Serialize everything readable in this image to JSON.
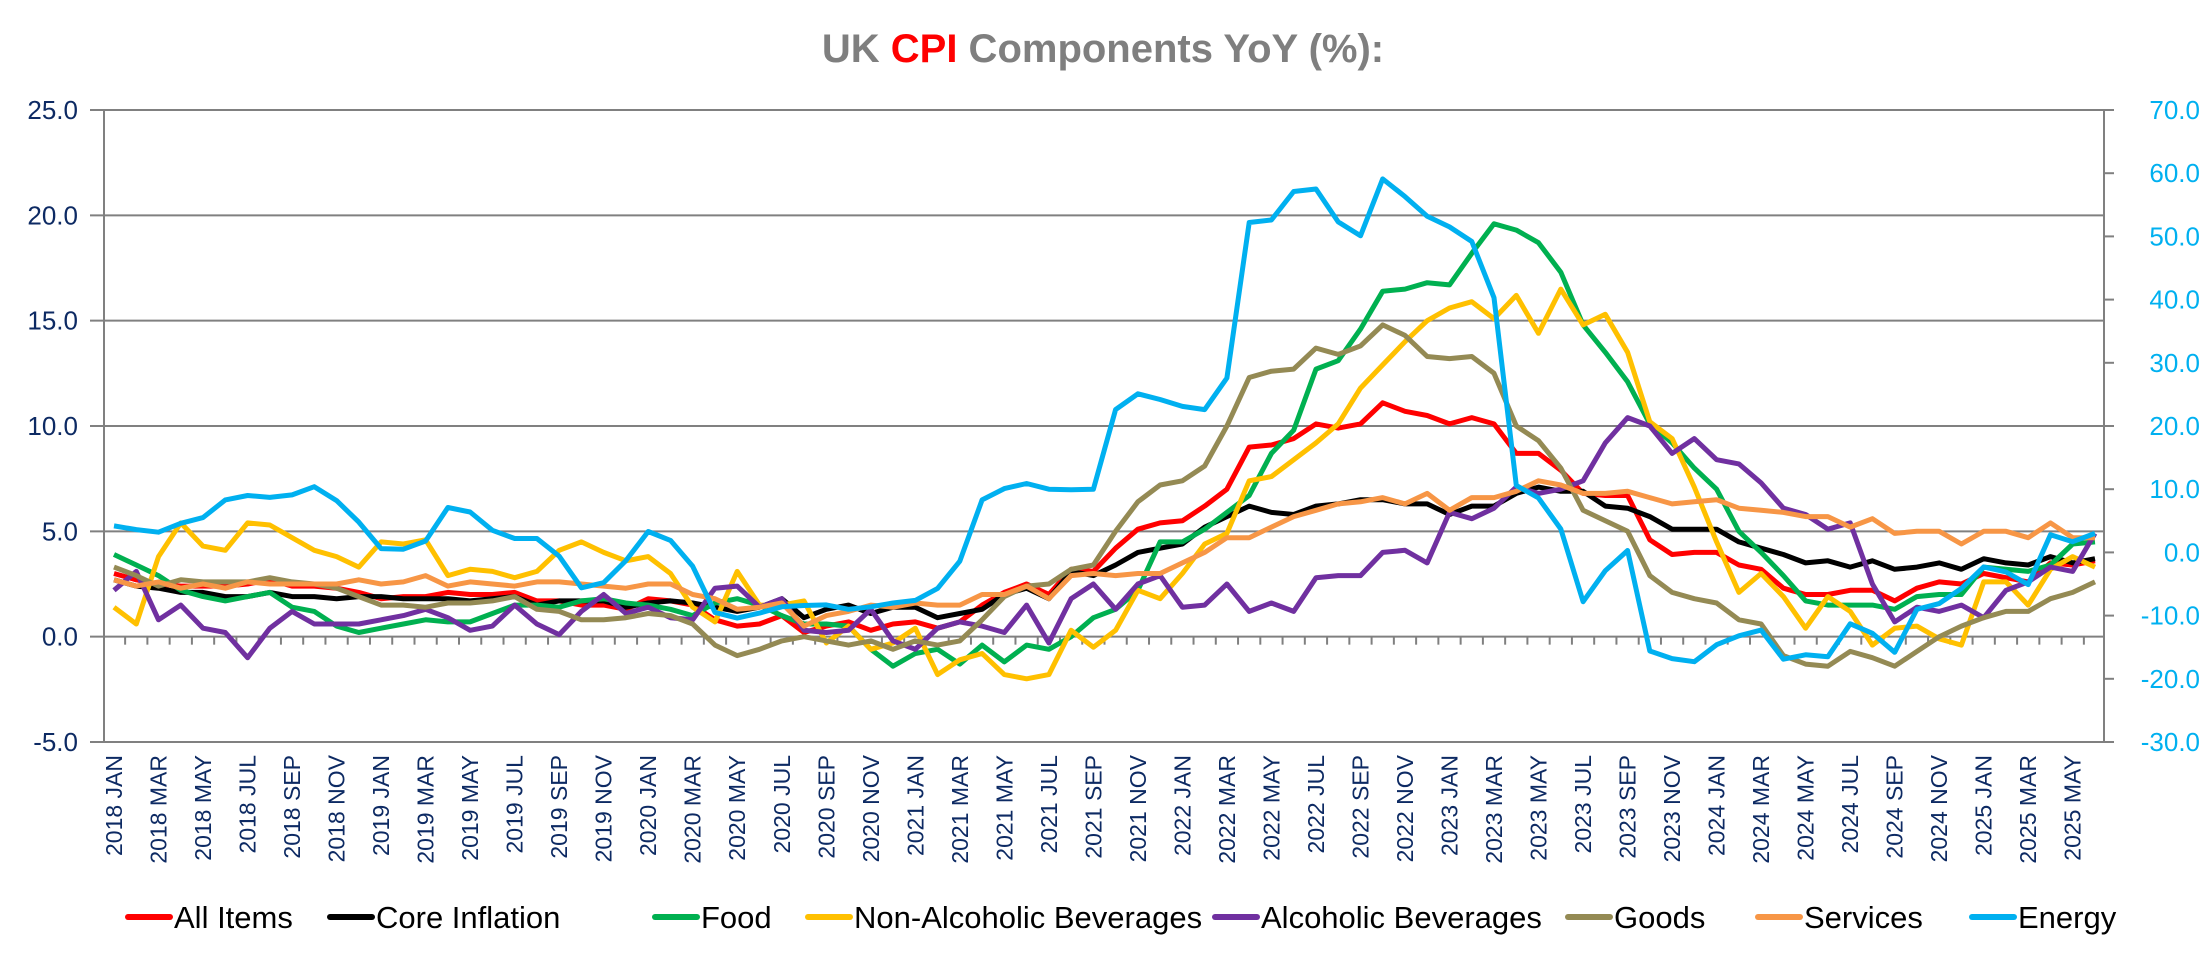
{
  "chart_data": {
    "type": "line",
    "title_parts": [
      {
        "text": "UK ",
        "accent": false
      },
      {
        "text": "CPI",
        "accent": true
      },
      {
        "text": " Components YoY (%):",
        "accent": false
      }
    ],
    "title": "UK CPI Components YoY (%):",
    "title_color": "#7f7f7f",
    "title_accent_color": "#ff0000",
    "xlabel": "",
    "ylabel": "",
    "ylim": [
      -5,
      25
    ],
    "yticks": [
      "-5.0",
      "0.0",
      "5.0",
      "10.0",
      "15.0",
      "20.0",
      "25.0"
    ],
    "y2lim": [
      -30,
      70
    ],
    "y2ticks": [
      "-30.0",
      "-20.0",
      "-10.0",
      "0.0",
      "10.0",
      "20.0",
      "30.0",
      "40.0",
      "50.0",
      "60.0",
      "70.0"
    ],
    "grid": true,
    "legend_position": "bottom",
    "x_label_step": 2,
    "x": [
      "2018 JAN",
      "2018 FEB",
      "2018 MAR",
      "2018 APR",
      "2018 MAY",
      "2018 JUN",
      "2018 JUL",
      "2018 AUG",
      "2018 SEP",
      "2018 OCT",
      "2018 NOV",
      "2018 DEC",
      "2019 JAN",
      "2019 FEB",
      "2019 MAR",
      "2019 APR",
      "2019 MAY",
      "2019 JUN",
      "2019 JUL",
      "2019 AUG",
      "2019 SEP",
      "2019 OCT",
      "2019 NOV",
      "2019 DEC",
      "2020 JAN",
      "2020 FEB",
      "2020 MAR",
      "2020 APR",
      "2020 MAY",
      "2020 JUN",
      "2020 JUL",
      "2020 AUG",
      "2020 SEP",
      "2020 OCT",
      "2020 NOV",
      "2020 DEC",
      "2021 JAN",
      "2021 FEB",
      "2021 MAR",
      "2021 APR",
      "2021 MAY",
      "2021 JUN",
      "2021 JUL",
      "2021 AUG",
      "2021 SEP",
      "2021 OCT",
      "2021 NOV",
      "2021 DEC",
      "2022 JAN",
      "2022 FEB",
      "2022 MAR",
      "2022 APR",
      "2022 MAY",
      "2022 JUN",
      "2022 JUL",
      "2022 AUG",
      "2022 SEP",
      "2022 OCT",
      "2022 NOV",
      "2022 DEC",
      "2023 JAN",
      "2023 FEB",
      "2023 MAR",
      "2023 APR",
      "2023 MAY",
      "2023 JUN",
      "2023 JUL",
      "2023 AUG",
      "2023 SEP",
      "2023 OCT",
      "2023 NOV",
      "2023 DEC",
      "2024 JAN",
      "2024 FEB",
      "2024 MAR",
      "2024 APR",
      "2024 MAY",
      "2024 JUN",
      "2024 JUL",
      "2024 AUG",
      "2024 SEP",
      "2024 OCT",
      "2024 NOV",
      "2024 DEC",
      "2025 JAN",
      "2025 FEB",
      "2025 MAR",
      "2025 APR",
      "2025 MAY",
      "2025 JUN"
    ],
    "series": [
      {
        "name": "All Items",
        "color": "#ff0000",
        "axis": "left",
        "values": [
          3.0,
          2.7,
          2.5,
          2.4,
          2.4,
          2.4,
          2.5,
          2.7,
          2.4,
          2.4,
          2.3,
          2.1,
          1.8,
          1.9,
          1.9,
          2.1,
          2.0,
          2.0,
          2.1,
          1.7,
          1.7,
          1.5,
          1.5,
          1.3,
          1.8,
          1.7,
          1.5,
          0.8,
          0.5,
          0.6,
          1.0,
          0.2,
          0.5,
          0.7,
          0.3,
          0.6,
          0.7,
          0.4,
          0.7,
          1.5,
          2.1,
          2.5,
          2.0,
          3.2,
          3.1,
          4.2,
          5.1,
          5.4,
          5.5,
          6.2,
          7.0,
          9.0,
          9.1,
          9.4,
          10.1,
          9.9,
          10.1,
          11.1,
          10.7,
          10.5,
          10.1,
          10.4,
          10.1,
          8.7,
          8.7,
          7.9,
          6.8,
          6.7,
          6.7,
          4.6,
          3.9,
          4.0,
          4.0,
          3.4,
          3.2,
          2.3,
          2.0,
          2.0,
          2.2,
          2.2,
          1.7,
          2.3,
          2.6,
          2.5,
          3.0,
          2.8,
          2.6,
          3.5,
          3.4,
          3.6
        ]
      },
      {
        "name": "Core Inflation",
        "color": "#000000",
        "axis": "left",
        "values": [
          2.7,
          2.4,
          2.3,
          2.1,
          2.1,
          1.9,
          1.9,
          2.1,
          1.9,
          1.9,
          1.8,
          1.9,
          1.9,
          1.8,
          1.8,
          1.8,
          1.7,
          1.8,
          1.9,
          1.5,
          1.7,
          1.7,
          1.7,
          1.4,
          1.6,
          1.7,
          1.6,
          1.4,
          1.2,
          1.4,
          1.8,
          0.9,
          1.3,
          1.5,
          1.1,
          1.4,
          1.4,
          0.9,
          1.1,
          1.3,
          2.0,
          2.3,
          1.8,
          3.1,
          2.9,
          3.4,
          4.0,
          4.2,
          4.4,
          5.2,
          5.7,
          6.2,
          5.9,
          5.8,
          6.2,
          6.3,
          6.5,
          6.5,
          6.3,
          6.3,
          5.8,
          6.2,
          6.2,
          6.8,
          7.1,
          6.9,
          6.9,
          6.2,
          6.1,
          5.7,
          5.1,
          5.1,
          5.1,
          4.5,
          4.2,
          3.9,
          3.5,
          3.6,
          3.3,
          3.6,
          3.2,
          3.3,
          3.5,
          3.2,
          3.7,
          3.5,
          3.4,
          3.8,
          3.5,
          3.7
        ]
      },
      {
        "name": "Food",
        "color": "#00b050",
        "axis": "left",
        "values": [
          3.9,
          3.4,
          2.9,
          2.2,
          1.9,
          1.7,
          1.9,
          2.1,
          1.4,
          1.2,
          0.5,
          0.2,
          0.4,
          0.6,
          0.8,
          0.7,
          0.7,
          1.1,
          1.5,
          1.5,
          1.4,
          1.7,
          1.8,
          1.6,
          1.5,
          1.3,
          1.0,
          1.6,
          1.8,
          1.5,
          1.0,
          0.6,
          0.6,
          0.5,
          -0.6,
          -1.4,
          -0.8,
          -0.6,
          -1.3,
          -0.4,
          -1.2,
          -0.4,
          -0.6,
          0.0,
          0.9,
          1.3,
          2.2,
          4.5,
          4.5,
          5.1,
          5.9,
          6.7,
          8.7,
          9.8,
          12.7,
          13.1,
          14.6,
          16.4,
          16.5,
          16.8,
          16.7,
          18.2,
          19.6,
          19.3,
          18.7,
          17.3,
          14.8,
          13.5,
          12.1,
          10.1,
          9.2,
          8.0,
          7.0,
          5.0,
          4.0,
          2.9,
          1.7,
          1.5,
          1.5,
          1.5,
          1.3,
          1.9,
          2.0,
          2.0,
          3.3,
          3.2,
          3.1,
          3.4,
          4.4,
          4.5
        ]
      },
      {
        "name": "Non-Alcoholic Beverages",
        "color": "#ffc000",
        "axis": "left",
        "values": [
          1.4,
          0.6,
          3.8,
          5.4,
          4.3,
          4.1,
          5.4,
          5.3,
          4.7,
          4.1,
          3.8,
          3.3,
          4.5,
          4.4,
          4.6,
          2.9,
          3.2,
          3.1,
          2.8,
          3.1,
          4.1,
          4.5,
          4.0,
          3.6,
          3.8,
          3.0,
          1.4,
          0.7,
          3.1,
          1.5,
          1.5,
          1.7,
          -0.3,
          0.5,
          -0.6,
          -0.3,
          0.4,
          -1.8,
          -1.1,
          -0.8,
          -1.8,
          -2.0,
          -1.8,
          0.3,
          -0.5,
          0.3,
          2.2,
          1.8,
          3.0,
          4.4,
          4.9,
          7.4,
          7.6,
          8.4,
          9.2,
          10.1,
          11.8,
          12.9,
          14.0,
          15.0,
          15.6,
          15.9,
          15.1,
          16.2,
          14.4,
          16.5,
          14.8,
          15.3,
          13.5,
          10.2,
          9.4,
          7.1,
          4.5,
          2.1,
          3.0,
          1.9,
          0.4,
          1.9,
          1.2,
          -0.4,
          0.4,
          0.5,
          -0.1,
          -0.4,
          2.6,
          2.6,
          1.5,
          3.2,
          3.8,
          3.3
        ]
      },
      {
        "name": "Alcoholic Beverages",
        "color": "#7030a0",
        "axis": "left",
        "values": [
          2.2,
          3.1,
          0.8,
          1.5,
          0.4,
          0.2,
          -1.0,
          0.4,
          1.2,
          0.6,
          0.6,
          0.6,
          0.8,
          1.0,
          1.3,
          0.9,
          0.3,
          0.5,
          1.5,
          0.6,
          0.1,
          1.2,
          2.0,
          1.1,
          1.4,
          0.9,
          0.8,
          2.3,
          2.4,
          1.4,
          1.8,
          0.3,
          0.2,
          0.3,
          1.3,
          -0.2,
          -0.6,
          0.4,
          0.7,
          0.5,
          0.2,
          1.5,
          -0.3,
          1.8,
          2.5,
          1.3,
          2.5,
          2.9,
          1.4,
          1.5,
          2.5,
          1.2,
          1.6,
          1.2,
          2.8,
          2.9,
          2.9,
          4.0,
          4.1,
          3.5,
          5.9,
          5.6,
          6.1,
          7.1,
          6.8,
          7.0,
          7.4,
          9.2,
          10.4,
          10.0,
          8.7,
          9.4,
          8.4,
          8.2,
          7.3,
          6.1,
          5.8,
          5.1,
          5.4,
          2.5,
          0.7,
          1.4,
          1.2,
          1.5,
          0.9,
          2.2,
          2.6,
          3.3,
          3.1,
          4.9
        ]
      },
      {
        "name": "Goods",
        "color": "#948a54",
        "axis": "left",
        "values": [
          3.3,
          2.9,
          2.4,
          2.7,
          2.6,
          2.6,
          2.6,
          2.8,
          2.6,
          2.5,
          2.3,
          1.9,
          1.5,
          1.5,
          1.4,
          1.6,
          1.6,
          1.7,
          1.9,
          1.3,
          1.2,
          0.8,
          0.8,
          0.9,
          1.1,
          1.0,
          0.6,
          -0.4,
          -0.9,
          -0.6,
          -0.2,
          0.0,
          -0.2,
          -0.4,
          -0.2,
          -0.6,
          -0.2,
          -0.4,
          -0.2,
          0.8,
          1.9,
          2.4,
          2.5,
          3.2,
          3.4,
          5.0,
          6.4,
          7.2,
          7.4,
          8.1,
          10.0,
          12.3,
          12.6,
          12.7,
          13.7,
          13.4,
          13.8,
          14.8,
          14.3,
          13.3,
          13.2,
          13.3,
          12.5,
          10.0,
          9.3,
          8.0,
          6.0,
          5.5,
          5.0,
          2.9,
          2.1,
          1.8,
          1.6,
          0.8,
          0.6,
          -0.9,
          -1.3,
          -1.4,
          -0.7,
          -1.0,
          -1.4,
          -0.7,
          0.0,
          0.5,
          0.9,
          1.2,
          1.2,
          1.8,
          2.1,
          2.6
        ]
      },
      {
        "name": "Services",
        "color": "#f79646",
        "axis": "left",
        "values": [
          2.7,
          2.4,
          2.6,
          2.3,
          2.5,
          2.3,
          2.6,
          2.5,
          2.5,
          2.5,
          2.5,
          2.7,
          2.5,
          2.6,
          2.9,
          2.4,
          2.6,
          2.5,
          2.4,
          2.6,
          2.6,
          2.5,
          2.4,
          2.3,
          2.5,
          2.5,
          2.0,
          1.8,
          1.3,
          1.4,
          1.6,
          0.5,
          1.0,
          1.2,
          1.5,
          1.4,
          1.6,
          1.5,
          1.5,
          2.0,
          2.0,
          2.4,
          1.8,
          2.9,
          3.0,
          2.9,
          3.0,
          3.0,
          3.5,
          4.0,
          4.7,
          4.7,
          5.2,
          5.7,
          6.0,
          6.3,
          6.4,
          6.6,
          6.3,
          6.8,
          6.0,
          6.6,
          6.6,
          6.9,
          7.4,
          7.2,
          6.8,
          6.8,
          6.9,
          6.6,
          6.3,
          6.4,
          6.5,
          6.1,
          6.0,
          5.9,
          5.7,
          5.7,
          5.2,
          5.6,
          4.9,
          5.0,
          5.0,
          4.4,
          5.0,
          5.0,
          4.7,
          5.4,
          4.7,
          4.7
        ]
      },
      {
        "name": "Energy",
        "color": "#00b0f0",
        "axis": "right",
        "values": [
          4.2,
          3.6,
          3.2,
          4.6,
          5.5,
          8.3,
          9.0,
          8.7,
          9.1,
          10.4,
          8.2,
          4.8,
          0.6,
          0.5,
          1.8,
          7.1,
          6.4,
          3.5,
          2.2,
          2.2,
          -0.6,
          -5.6,
          -4.8,
          -1.3,
          3.3,
          1.9,
          -2.2,
          -9.5,
          -10.4,
          -9.6,
          -8.6,
          -8.4,
          -8.3,
          -9.0,
          -8.6,
          -8.0,
          -7.6,
          -5.7,
          -1.4,
          8.3,
          10.1,
          10.9,
          10.0,
          9.9,
          10.0,
          22.6,
          25.1,
          24.2,
          23.1,
          22.6,
          27.6,
          52.2,
          52.6,
          57.1,
          57.5,
          52.3,
          50.1,
          59.1,
          56.3,
          53.2,
          51.5,
          49.2,
          40.3,
          10.6,
          8.6,
          3.7,
          -7.8,
          -2.9,
          0.3,
          -15.6,
          -16.8,
          -17.3,
          -14.6,
          -13.2,
          -12.3,
          -16.9,
          -16.2,
          -16.5,
          -11.3,
          -12.8,
          -15.8,
          -9.0,
          -8.1,
          -5.7,
          -2.3,
          -3.1,
          -5.1,
          2.8,
          1.7,
          3.0
        ]
      }
    ]
  }
}
